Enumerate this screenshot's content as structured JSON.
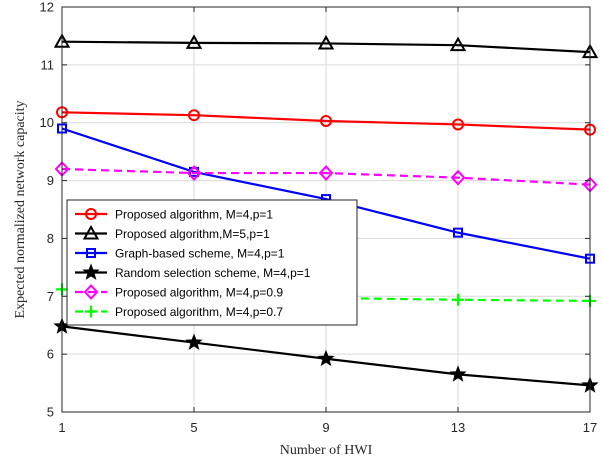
{
  "chart_data": {
    "type": "line",
    "title": "",
    "xlabel": "Number of HWI",
    "ylabel": "Expected normalized network capacity",
    "x": [
      1,
      5,
      9,
      13,
      17
    ],
    "xticks": [
      "1",
      "5",
      "9",
      "13",
      "17"
    ],
    "yticks": [
      "5",
      "6",
      "7",
      "8",
      "9",
      "10",
      "11",
      "12"
    ],
    "xlim": [
      1,
      17
    ],
    "ylim": [
      5,
      12
    ],
    "grid": true,
    "legend_position": "middle-left",
    "series": [
      {
        "name": "Proposed algorithm, M=4,p=1",
        "values": [
          10.18,
          10.13,
          10.03,
          9.97,
          9.88
        ],
        "color": "#ff0000",
        "marker": "circle",
        "dash": "solid"
      },
      {
        "name": "Proposed algorithm,M=5,p=1",
        "values": [
          11.4,
          11.38,
          11.37,
          11.34,
          11.22
        ],
        "color": "#000000",
        "marker": "triangle",
        "dash": "solid"
      },
      {
        "name": "Graph-based scheme, M=4,p=1",
        "values": [
          9.9,
          9.15,
          8.68,
          8.1,
          7.65
        ],
        "color": "#0000ff",
        "marker": "square",
        "dash": "solid"
      },
      {
        "name": "Random selection scheme, M=4,p=1",
        "values": [
          6.48,
          6.2,
          5.92,
          5.65,
          5.46
        ],
        "color": "#000000",
        "marker": "star",
        "dash": "solid"
      },
      {
        "name": "Proposed algorithm, M=4,p=0.9",
        "values": [
          9.2,
          9.13,
          9.13,
          9.05,
          8.93
        ],
        "color": "#ff00ff",
        "marker": "diamond",
        "dash": "dashed"
      },
      {
        "name": "Proposed algorithm, M=4,p=0.7",
        "values": [
          7.12,
          7.0,
          6.97,
          6.94,
          6.92
        ],
        "color": "#00ff00",
        "marker": "plus",
        "dash": "dashed"
      }
    ]
  }
}
